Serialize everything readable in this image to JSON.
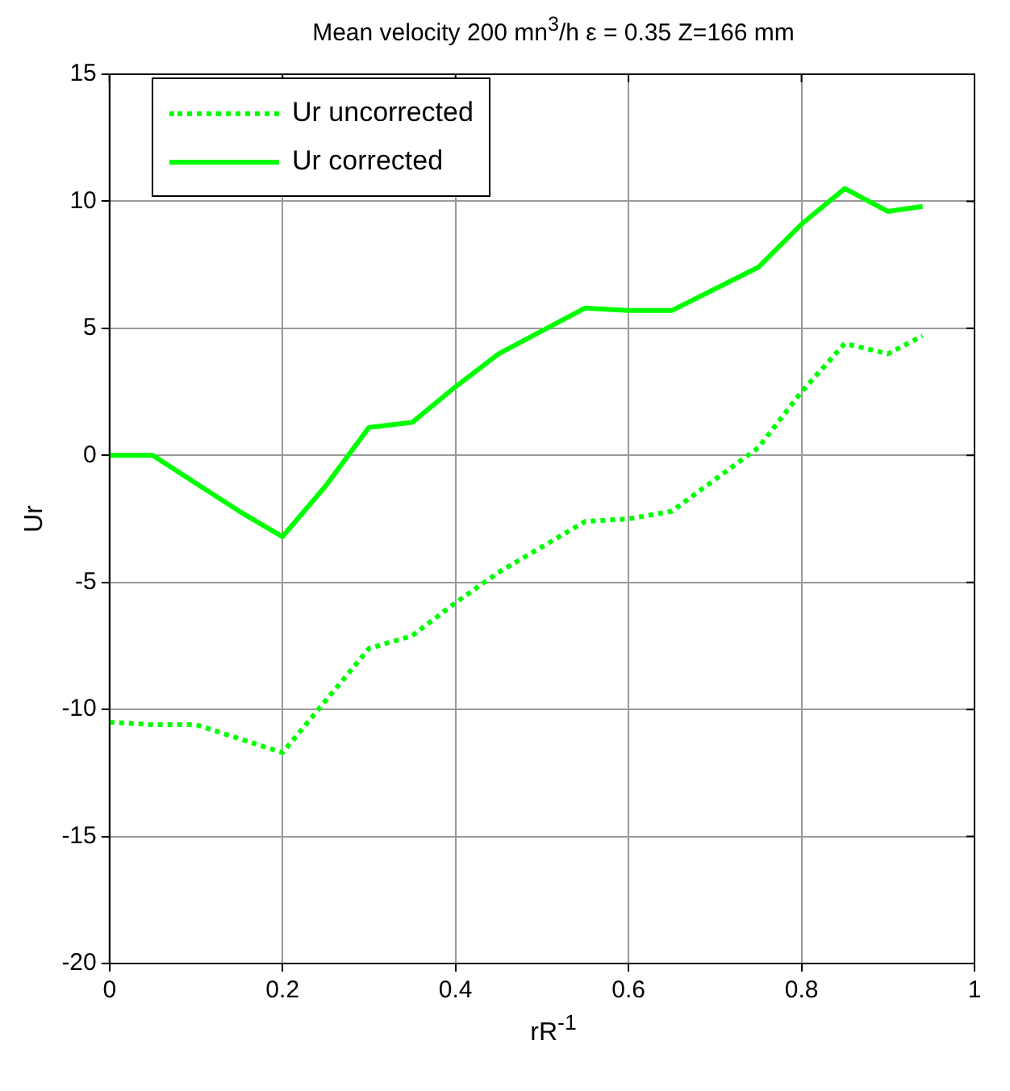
{
  "chart_data": {
    "type": "line",
    "title": "Mean velocity 200 mn$^{3}$/h ε = 0.35 Z=166 mm",
    "xlabel": "rR$^{-1}$",
    "ylabel": "Ur",
    "series": [
      {
        "name": "Ur uncorrected",
        "color": "#00ff00",
        "line_style": "dotted",
        "x": [
          0,
          0.05,
          0.1,
          0.2,
          0.3,
          0.35,
          0.4,
          0.45,
          0.55,
          0.6,
          0.65,
          0.75,
          0.8,
          0.85,
          0.9,
          0.94
        ],
        "values": [
          -10.5,
          -10.6,
          -10.6,
          -11.7,
          -7.6,
          -7.1,
          -5.8,
          -4.6,
          -2.6,
          -2.5,
          -2.2,
          0.3,
          2.5,
          4.4,
          4.0,
          4.7
        ]
      },
      {
        "name": "Ur corrected",
        "color": "#00ff00",
        "line_style": "solid",
        "x": [
          0,
          0.05,
          0.1,
          0.15,
          0.2,
          0.25,
          0.3,
          0.35,
          0.4,
          0.45,
          0.55,
          0.6,
          0.65,
          0.75,
          0.8,
          0.85,
          0.9,
          0.94
        ],
        "values": [
          0,
          0,
          -1.1,
          -2.2,
          -3.2,
          -1.2,
          1.1,
          1.3,
          2.7,
          4.0,
          5.8,
          5.7,
          5.7,
          7.4,
          9.1,
          10.5,
          9.6,
          9.8
        ]
      }
    ],
    "xlim": [
      0,
      1
    ],
    "xticks": [
      0,
      0.2,
      0.4,
      0.6,
      0.8,
      1
    ],
    "ylim": [
      -20,
      15
    ],
    "yticks": [
      -20,
      -15,
      -10,
      -5,
      0,
      5,
      10,
      15
    ],
    "grid": true,
    "legend": "top left",
    "marker": "none"
  }
}
